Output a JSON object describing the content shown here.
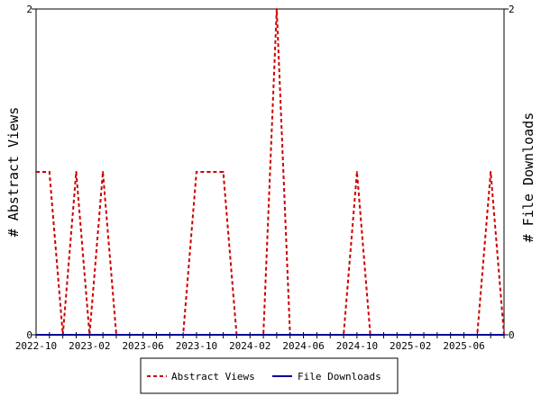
{
  "chart_data": {
    "type": "line",
    "title": "",
    "xlabel": "",
    "ylabel_left": "# Abstract Views",
    "ylabel_right": "# File Downloads",
    "ylim": [
      0,
      2
    ],
    "y_ticks_left": [
      "0",
      "2"
    ],
    "y_ticks_right": [
      "0",
      "2"
    ],
    "x_tick_labels": [
      "2022-10",
      "2023-02",
      "2023-06",
      "2023-10",
      "2024-02",
      "2024-06",
      "2024-10",
      "2025-02",
      "2025-06"
    ],
    "x_range": [
      "2022-10",
      "2025-09"
    ],
    "x": [
      "2022-10",
      "2022-11",
      "2022-12",
      "2023-01",
      "2023-02",
      "2023-03",
      "2023-04",
      "2023-05",
      "2023-06",
      "2023-07",
      "2023-08",
      "2023-09",
      "2023-10",
      "2023-11",
      "2023-12",
      "2024-01",
      "2024-02",
      "2024-03",
      "2024-04",
      "2024-05",
      "2024-06",
      "2024-07",
      "2024-08",
      "2024-09",
      "2024-10",
      "2024-11",
      "2024-12",
      "2025-01",
      "2025-02",
      "2025-03",
      "2025-04",
      "2025-05",
      "2025-06",
      "2025-07",
      "2025-08",
      "2025-09"
    ],
    "series": [
      {
        "name": "Abstract Views",
        "color": "#cc0000",
        "dash": "dashed",
        "values": [
          1,
          1,
          0,
          1,
          0,
          1,
          0,
          0,
          0,
          0,
          0,
          0,
          1,
          1,
          1,
          0,
          0,
          0,
          2,
          0,
          0,
          0,
          0,
          0,
          1,
          0,
          0,
          0,
          0,
          0,
          0,
          0,
          0,
          0,
          1,
          0
        ]
      },
      {
        "name": "File Downloads",
        "color": "#000099",
        "dash": "solid",
        "values": [
          0,
          0,
          0,
          0,
          0,
          0,
          0,
          0,
          0,
          0,
          0,
          0,
          0,
          0,
          0,
          0,
          0,
          0,
          0,
          0,
          0,
          0,
          0,
          0,
          0,
          0,
          0,
          0,
          0,
          0,
          0,
          0,
          0,
          0,
          0,
          0
        ]
      }
    ],
    "grid": false,
    "legend_position": "bottom"
  }
}
